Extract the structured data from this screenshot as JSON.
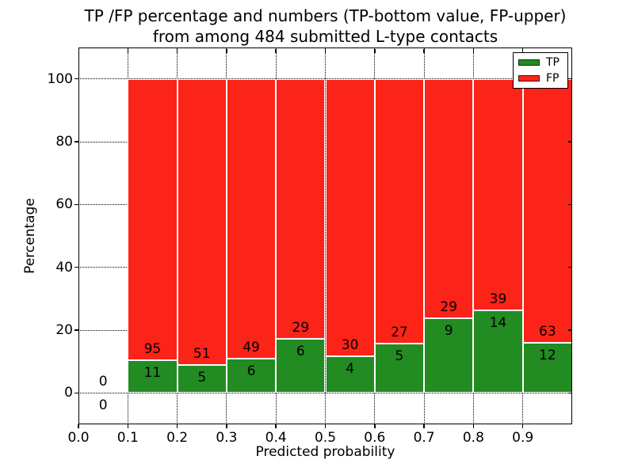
{
  "figure": {
    "title_line1": "TP /FP percentage and numbers (TP-bottom value, FP-upper)",
    "title_line2": "from among 484 submitted L-type contacts",
    "xlabel": "Predicted probability",
    "ylabel": "Percentage"
  },
  "legend": {
    "position": "upper right",
    "items": [
      {
        "label": "TP",
        "color": "#228b22"
      },
      {
        "label": "FP",
        "color": "#fc2318"
      }
    ]
  },
  "colors": {
    "tp": "#228b22",
    "fp": "#fc2318",
    "grid": "#000000",
    "axis": "#000000",
    "background": "#ffffff",
    "bar_edge": "#ffffff",
    "text": "#000000"
  },
  "chart_data": {
    "type": "bar",
    "stacked": true,
    "title": "TP /FP percentage and numbers (TP-bottom value, FP-upper)\nfrom among 484 submitted L-type contacts",
    "xlabel": "Predicted probability",
    "ylabel": "Percentage",
    "xlim": [
      0.0,
      1.0
    ],
    "ylim": [
      -10,
      110
    ],
    "grid": {
      "visible": true,
      "style": "dotted"
    },
    "legend_position": "upper right",
    "total_contacts": 484,
    "xticks": [
      {
        "v": 0.0,
        "label": "0.0"
      },
      {
        "v": 0.1,
        "label": "0.1"
      },
      {
        "v": 0.2,
        "label": "0.2"
      },
      {
        "v": 0.3,
        "label": "0.3"
      },
      {
        "v": 0.4,
        "label": "0.4"
      },
      {
        "v": 0.5,
        "label": "0.5"
      },
      {
        "v": 0.6,
        "label": "0.6"
      },
      {
        "v": 0.7,
        "label": "0.7"
      },
      {
        "v": 0.8,
        "label": "0.8"
      },
      {
        "v": 0.9,
        "label": "0.9"
      }
    ],
    "yticks": [
      {
        "v": 0,
        "label": "0"
      },
      {
        "v": 20,
        "label": "20"
      },
      {
        "v": 40,
        "label": "40"
      },
      {
        "v": 60,
        "label": "60"
      },
      {
        "v": 80,
        "label": "80"
      },
      {
        "v": 100,
        "label": "100"
      }
    ],
    "series": [
      {
        "name": "TP",
        "color": "#228b22"
      },
      {
        "name": "FP",
        "color": "#fc2318"
      }
    ],
    "bins": [
      {
        "x_start": 0.0,
        "x_end": 0.1,
        "tp": 0,
        "fp": 0,
        "tp_pct": 0.0,
        "fp_pct": 0.0
      },
      {
        "x_start": 0.1,
        "x_end": 0.2,
        "tp": 11,
        "fp": 95,
        "tp_pct": 10.38,
        "fp_pct": 89.62
      },
      {
        "x_start": 0.2,
        "x_end": 0.3,
        "tp": 5,
        "fp": 51,
        "tp_pct": 8.93,
        "fp_pct": 91.07
      },
      {
        "x_start": 0.3,
        "x_end": 0.4,
        "tp": 6,
        "fp": 49,
        "tp_pct": 10.91,
        "fp_pct": 89.09
      },
      {
        "x_start": 0.4,
        "x_end": 0.5,
        "tp": 6,
        "fp": 29,
        "tp_pct": 17.14,
        "fp_pct": 82.86
      },
      {
        "x_start": 0.5,
        "x_end": 0.6,
        "tp": 4,
        "fp": 30,
        "tp_pct": 11.76,
        "fp_pct": 88.24
      },
      {
        "x_start": 0.6,
        "x_end": 0.7,
        "tp": 5,
        "fp": 27,
        "tp_pct": 15.63,
        "fp_pct": 84.37
      },
      {
        "x_start": 0.7,
        "x_end": 0.8,
        "tp": 9,
        "fp": 29,
        "tp_pct": 23.68,
        "fp_pct": 76.32
      },
      {
        "x_start": 0.8,
        "x_end": 0.9,
        "tp": 14,
        "fp": 39,
        "tp_pct": 26.42,
        "fp_pct": 73.58
      },
      {
        "x_start": 0.9,
        "x_end": 1.0,
        "tp": 12,
        "fp": 63,
        "tp_pct": 16.0,
        "fp_pct": 84.0
      }
    ]
  }
}
